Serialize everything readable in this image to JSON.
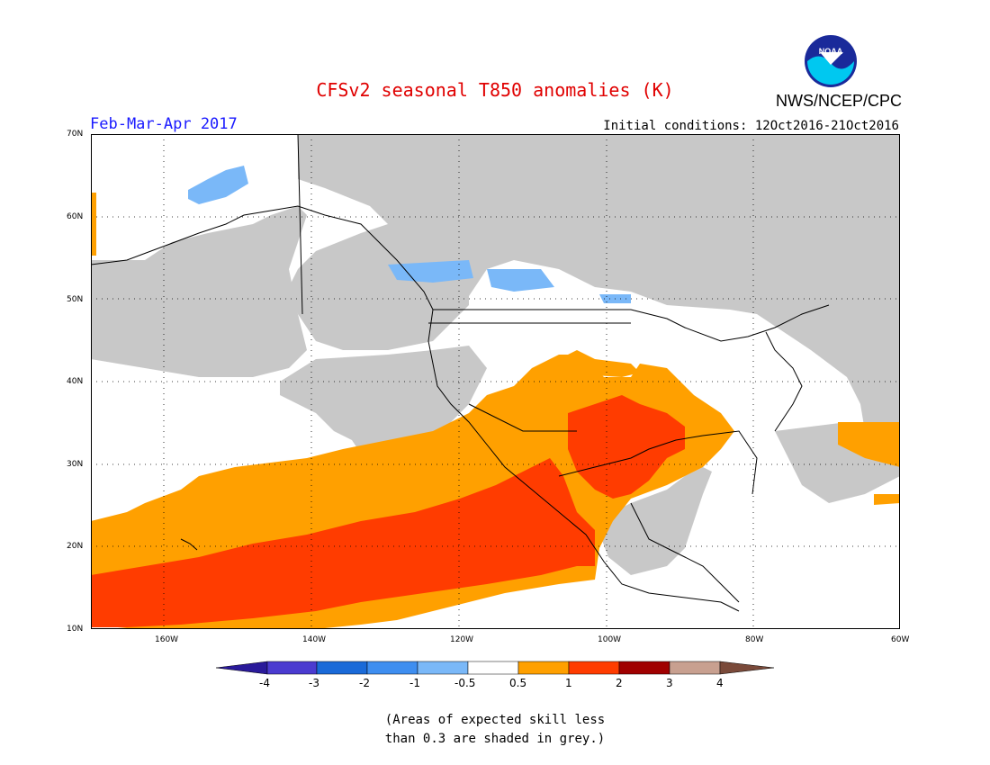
{
  "header": {
    "title": "CFSv2 seasonal T850 anomalies (K)",
    "agency": "NWS/NCEP/CPC",
    "season": "Feb-Mar-Apr 2017",
    "initial_conditions": "Initial conditions: 12Oct2016-21Oct2016",
    "logo_text": "NOAA"
  },
  "map": {
    "lat_labels": [
      "70N",
      "60N",
      "50N",
      "40N",
      "30N",
      "20N",
      "10N"
    ],
    "lon_labels": [
      "160W",
      "140W",
      "120W",
      "100W",
      "80W",
      "60W"
    ],
    "extent": {
      "lon_min": -170,
      "lon_max": -60,
      "lat_min": 10,
      "lat_max": 70
    }
  },
  "colorbar": {
    "labels": [
      "-4",
      "-3",
      "-2",
      "-1",
      "-0.5",
      "0.5",
      "1",
      "2",
      "3",
      "4"
    ],
    "colors": [
      "#2a1a9a",
      "#4b3bd0",
      "#1a6ad8",
      "#3e8ef0",
      "#7ab8f8",
      "#ffffff",
      "#ffa000",
      "#ff3c00",
      "#a00000",
      "#c8a090",
      "#7a4a3a"
    ]
  },
  "legend_colors": {
    "grey_low_skill": "#c8c8c8",
    "light_blue": "#7ab8f8",
    "orange": "#ffa000",
    "red": "#ff3c00"
  },
  "footnote": "(Areas of expected skill less\nthan 0.3 are shaded in grey.)"
}
